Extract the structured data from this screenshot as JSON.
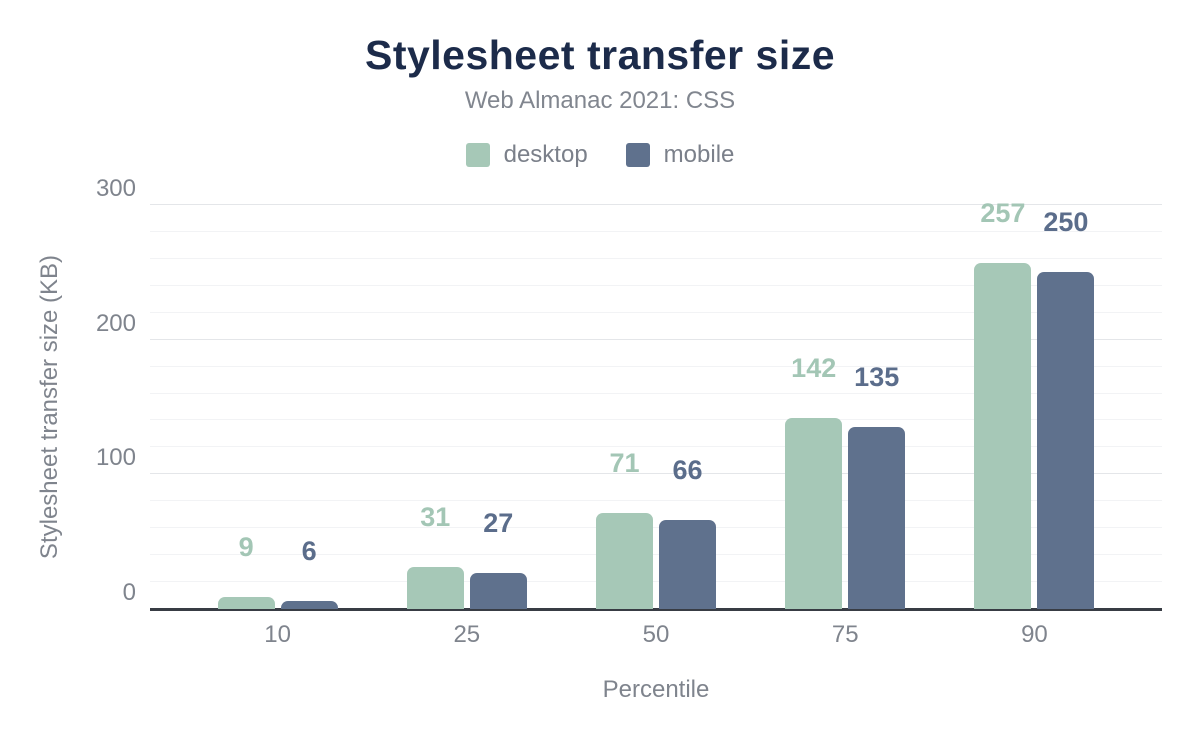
{
  "title": "Stylesheet transfer size",
  "subtitle": "Web Almanac 2021: CSS",
  "colors": {
    "desktop": "#a6c8b7",
    "mobile": "#5f718d",
    "title": "#1c2b4a",
    "axis_text": "#7f848d",
    "axis_line": "#383c44",
    "grid_major": "#e4e6e9",
    "grid_minor": "#f2f3f5",
    "background": "#ffffff"
  },
  "chart_data": {
    "type": "bar",
    "categories": [
      "10",
      "25",
      "50",
      "75",
      "90"
    ],
    "series": [
      {
        "name": "desktop",
        "color": "#a6c8b7",
        "label_color": "#a3c6b5",
        "values": [
          9,
          31,
          71,
          142,
          257
        ]
      },
      {
        "name": "mobile",
        "color": "#5f718d",
        "label_color": "#5b6d8b",
        "values": [
          6,
          27,
          66,
          135,
          250
        ]
      }
    ],
    "title": "Stylesheet transfer size",
    "subtitle": "Web Almanac 2021: CSS",
    "xlabel": "Percentile",
    "ylabel": "Stylesheet transfer size (KB)",
    "ylim": [
      0,
      300
    ],
    "yticks": [
      0,
      100,
      200,
      300
    ],
    "minor_gridline_step": 20,
    "grid": true,
    "legend_position": "top",
    "value_labels": true
  }
}
